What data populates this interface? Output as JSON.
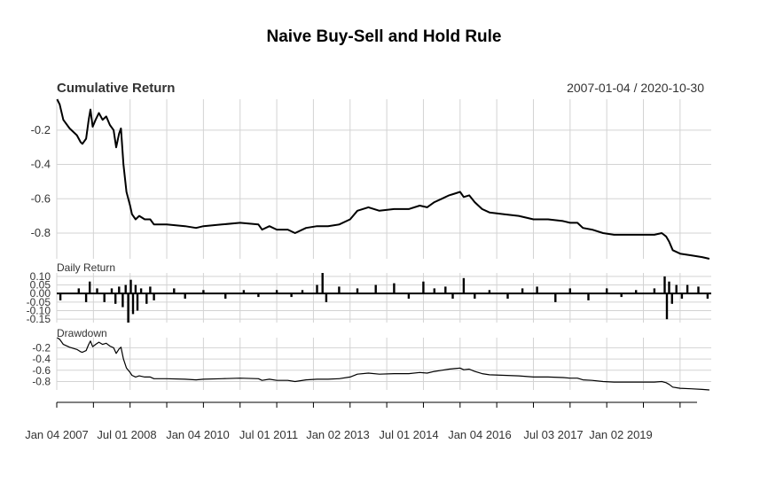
{
  "chart_data": {
    "type": "line",
    "title": "Naive Buy-Sell and Hold Rule",
    "date_range_label": "2007-01-04 / 2020-10-30",
    "x_tick_labels": [
      "Jan 04 2007",
      "Jul 01 2008",
      "Jan 04 2010",
      "Jul 01 2011",
      "Jan 02 2013",
      "Jul 01 2014",
      "Jan 04 2016",
      "Jul 03 2017",
      "Jan 02 2019"
    ],
    "grid": true,
    "colors": {
      "line": "#000000",
      "grid": "#d3d3d3",
      "axis": "#000000"
    },
    "panels": [
      {
        "name": "Cumulative Return",
        "ylim": [
          -0.95,
          -0.02
        ],
        "y_ticks": [
          -0.2,
          -0.4,
          -0.6,
          -0.8
        ],
        "y_tick_labels": [
          "-0.2",
          "-0.4",
          "-0.6",
          "-0.8"
        ],
        "series": [
          {
            "values": [
              [
                2007.01,
                -0.02
              ],
              [
                2007.08,
                -0.05
              ],
              [
                2007.18,
                -0.14
              ],
              [
                2007.35,
                -0.19
              ],
              [
                2007.55,
                -0.23
              ],
              [
                2007.65,
                -0.27
              ],
              [
                2007.7,
                -0.28
              ],
              [
                2007.8,
                -0.25
              ],
              [
                2007.87,
                -0.14
              ],
              [
                2007.92,
                -0.08
              ],
              [
                2007.98,
                -0.18
              ],
              [
                2008.06,
                -0.14
              ],
              [
                2008.15,
                -0.1
              ],
              [
                2008.25,
                -0.14
              ],
              [
                2008.35,
                -0.12
              ],
              [
                2008.45,
                -0.17
              ],
              [
                2008.55,
                -0.2
              ],
              [
                2008.62,
                -0.3
              ],
              [
                2008.7,
                -0.22
              ],
              [
                2008.75,
                -0.19
              ],
              [
                2008.82,
                -0.4
              ],
              [
                2008.9,
                -0.56
              ],
              [
                2009.0,
                -0.64
              ],
              [
                2009.05,
                -0.69
              ],
              [
                2009.15,
                -0.72
              ],
              [
                2009.25,
                -0.7
              ],
              [
                2009.4,
                -0.72
              ],
              [
                2009.55,
                -0.72
              ],
              [
                2009.65,
                -0.75
              ],
              [
                2010.0,
                -0.75
              ],
              [
                2010.5,
                -0.76
              ],
              [
                2010.8,
                -0.77
              ],
              [
                2011.0,
                -0.76
              ],
              [
                2011.5,
                -0.75
              ],
              [
                2012.0,
                -0.74
              ],
              [
                2012.5,
                -0.75
              ],
              [
                2012.6,
                -0.78
              ],
              [
                2012.8,
                -0.76
              ],
              [
                2013.0,
                -0.78
              ],
              [
                2013.3,
                -0.78
              ],
              [
                2013.5,
                -0.8
              ],
              [
                2013.8,
                -0.77
              ],
              [
                2014.1,
                -0.76
              ],
              [
                2014.4,
                -0.76
              ],
              [
                2014.7,
                -0.75
              ],
              [
                2015.0,
                -0.72
              ],
              [
                2015.2,
                -0.67
              ],
              [
                2015.5,
                -0.65
              ],
              [
                2015.8,
                -0.67
              ],
              [
                2016.2,
                -0.66
              ],
              [
                2016.6,
                -0.66
              ],
              [
                2016.9,
                -0.64
              ],
              [
                2017.1,
                -0.65
              ],
              [
                2017.3,
                -0.62
              ],
              [
                2017.5,
                -0.6
              ],
              [
                2017.7,
                -0.58
              ],
              [
                2017.85,
                -0.57
              ],
              [
                2018.0,
                -0.56
              ],
              [
                2018.1,
                -0.59
              ],
              [
                2018.25,
                -0.58
              ],
              [
                2018.4,
                -0.62
              ],
              [
                2018.6,
                -0.66
              ],
              [
                2018.8,
                -0.68
              ],
              [
                2019.2,
                -0.69
              ],
              [
                2019.6,
                -0.7
              ],
              [
                2020.0,
                -0.72
              ],
              [
                2020.4,
                -0.72
              ],
              [
                2020.8,
                -0.73
              ],
              [
                2021.0,
                -0.74
              ],
              [
                2021.2,
                -0.74
              ],
              [
                2021.35,
                -0.77
              ],
              [
                2021.6,
                -0.78
              ],
              [
                2021.9,
                -0.8
              ],
              [
                2022.2,
                -0.81
              ],
              [
                2022.6,
                -0.81
              ],
              [
                2023.0,
                -0.81
              ],
              [
                2023.3,
                -0.81
              ],
              [
                2023.5,
                -0.8
              ],
              [
                2023.62,
                -0.82
              ],
              [
                2023.7,
                -0.85
              ],
              [
                2023.8,
                -0.9
              ],
              [
                2024.0,
                -0.92
              ],
              [
                2024.3,
                -0.93
              ],
              [
                2024.6,
                -0.94
              ],
              [
                2024.8,
                -0.95
              ]
            ]
          }
        ]
      },
      {
        "name": "Daily Return",
        "ylim": [
          -0.17,
          0.12
        ],
        "y_ticks": [
          0.1,
          0.05,
          0.0,
          -0.05,
          -0.1,
          -0.15
        ],
        "y_tick_labels": [
          "0.10",
          "0.05",
          "0.00",
          "-0.05",
          "-0.10",
          "-0.15"
        ],
        "bars": [
          [
            2007.1,
            -0.04
          ],
          [
            2007.6,
            0.03
          ],
          [
            2007.8,
            -0.05
          ],
          [
            2007.9,
            0.07
          ],
          [
            2008.1,
            0.03
          ],
          [
            2008.3,
            -0.05
          ],
          [
            2008.5,
            0.03
          ],
          [
            2008.6,
            -0.06
          ],
          [
            2008.7,
            0.04
          ],
          [
            2008.8,
            -0.08
          ],
          [
            2008.88,
            0.05
          ],
          [
            2008.95,
            -0.17
          ],
          [
            2009.02,
            0.08
          ],
          [
            2009.08,
            -0.12
          ],
          [
            2009.15,
            0.05
          ],
          [
            2009.2,
            -0.1
          ],
          [
            2009.3,
            0.03
          ],
          [
            2009.45,
            -0.06
          ],
          [
            2009.55,
            0.04
          ],
          [
            2009.65,
            -0.04
          ],
          [
            2010.2,
            0.03
          ],
          [
            2010.5,
            -0.03
          ],
          [
            2011.0,
            0.02
          ],
          [
            2011.6,
            -0.03
          ],
          [
            2012.1,
            0.02
          ],
          [
            2012.5,
            -0.02
          ],
          [
            2013.0,
            0.02
          ],
          [
            2013.4,
            -0.02
          ],
          [
            2013.7,
            0.02
          ],
          [
            2014.1,
            0.05
          ],
          [
            2014.25,
            0.12
          ],
          [
            2014.35,
            -0.05
          ],
          [
            2014.7,
            0.04
          ],
          [
            2015.2,
            0.03
          ],
          [
            2015.7,
            0.05
          ],
          [
            2016.2,
            0.06
          ],
          [
            2016.6,
            -0.03
          ],
          [
            2017.0,
            0.07
          ],
          [
            2017.3,
            0.03
          ],
          [
            2017.6,
            0.04
          ],
          [
            2017.8,
            -0.03
          ],
          [
            2018.1,
            0.09
          ],
          [
            2018.4,
            -0.03
          ],
          [
            2018.8,
            0.02
          ],
          [
            2019.3,
            -0.03
          ],
          [
            2019.7,
            0.03
          ],
          [
            2020.1,
            0.04
          ],
          [
            2020.6,
            -0.05
          ],
          [
            2021.0,
            0.03
          ],
          [
            2021.5,
            -0.04
          ],
          [
            2022.0,
            0.03
          ],
          [
            2022.4,
            -0.02
          ],
          [
            2022.8,
            0.02
          ],
          [
            2023.3,
            0.03
          ],
          [
            2023.58,
            0.1
          ],
          [
            2023.64,
            -0.15
          ],
          [
            2023.7,
            0.07
          ],
          [
            2023.78,
            -0.06
          ],
          [
            2023.9,
            0.05
          ],
          [
            2024.05,
            -0.03
          ],
          [
            2024.2,
            0.05
          ],
          [
            2024.5,
            0.04
          ],
          [
            2024.75,
            -0.03
          ]
        ]
      },
      {
        "name": "Drawdown",
        "ylim": [
          -0.95,
          -0.02
        ],
        "y_ticks": [
          -0.2,
          -0.4,
          -0.6,
          -0.8
        ],
        "y_tick_labels": [
          "-0.2",
          "-0.4",
          "-0.6",
          "-0.8"
        ],
        "series_ref": "same values as Cumulative Return"
      }
    ]
  }
}
